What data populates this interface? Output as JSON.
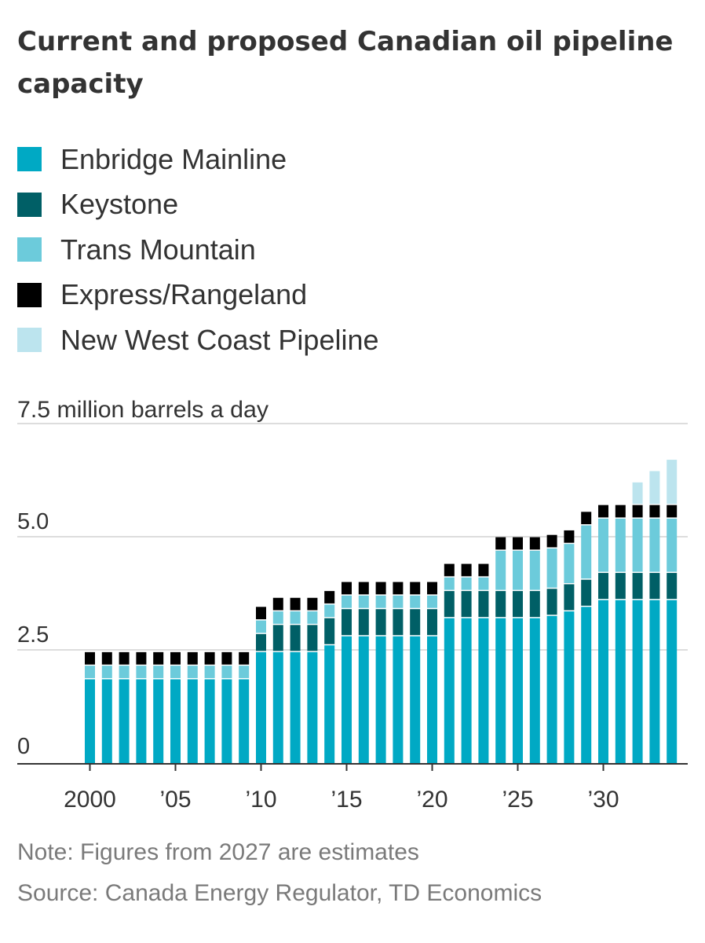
{
  "chart_data": {
    "type": "bar",
    "stacked": true,
    "title": "Current and proposed Canadian oil pipeline capacity",
    "unit_label": "7.5 million barrels a day",
    "ylim": [
      0,
      7.5
    ],
    "y_ticks": [
      {
        "value": 0,
        "label": "0"
      },
      {
        "value": 2.5,
        "label": "2.5"
      },
      {
        "value": 5.0,
        "label": "5.0"
      },
      {
        "value": 7.5,
        "label": "7.5"
      }
    ],
    "years": [
      2000,
      2001,
      2002,
      2003,
      2004,
      2005,
      2006,
      2007,
      2008,
      2009,
      2010,
      2011,
      2012,
      2013,
      2014,
      2015,
      2016,
      2017,
      2018,
      2019,
      2020,
      2021,
      2022,
      2023,
      2024,
      2025,
      2026,
      2027,
      2028,
      2029,
      2030,
      2031,
      2032,
      2033,
      2034
    ],
    "x_ticks": [
      {
        "value": 2000,
        "label": "2000"
      },
      {
        "value": 2005,
        "label": "’05"
      },
      {
        "value": 2010,
        "label": "’10"
      },
      {
        "value": 2015,
        "label": "’15"
      },
      {
        "value": 2020,
        "label": "’20"
      },
      {
        "value": 2025,
        "label": "’25"
      },
      {
        "value": 2030,
        "label": "’30"
      }
    ],
    "legend_placement": "top",
    "grid": true,
    "series": [
      {
        "name": "Enbridge Mainline",
        "color": "#00a9c4",
        "values": [
          1.85,
          1.85,
          1.85,
          1.85,
          1.85,
          1.85,
          1.85,
          1.85,
          1.85,
          1.85,
          2.45,
          2.45,
          2.45,
          2.45,
          2.6,
          2.8,
          2.8,
          2.8,
          2.8,
          2.8,
          2.8,
          3.2,
          3.2,
          3.2,
          3.2,
          3.2,
          3.2,
          3.25,
          3.35,
          3.45,
          3.6,
          3.6,
          3.6,
          3.6,
          3.6
        ]
      },
      {
        "name": "Keystone",
        "color": "#005f66",
        "values": [
          0,
          0,
          0,
          0,
          0,
          0,
          0,
          0,
          0,
          0,
          0.4,
          0.6,
          0.6,
          0.6,
          0.6,
          0.6,
          0.6,
          0.6,
          0.6,
          0.6,
          0.6,
          0.6,
          0.6,
          0.6,
          0.6,
          0.6,
          0.6,
          0.6,
          0.6,
          0.6,
          0.6,
          0.6,
          0.6,
          0.6,
          0.6
        ]
      },
      {
        "name": "Trans Mountain",
        "color": "#6ccbdb",
        "values": [
          0.3,
          0.3,
          0.3,
          0.3,
          0.3,
          0.3,
          0.3,
          0.3,
          0.3,
          0.3,
          0.3,
          0.3,
          0.3,
          0.3,
          0.3,
          0.3,
          0.3,
          0.3,
          0.3,
          0.3,
          0.3,
          0.3,
          0.3,
          0.3,
          0.89,
          0.89,
          0.89,
          0.89,
          0.89,
          1.2,
          1.2,
          1.2,
          1.2,
          1.2,
          1.2
        ]
      },
      {
        "name": "Express/Rangeland",
        "color": "#000000",
        "values": [
          0.3,
          0.3,
          0.3,
          0.3,
          0.3,
          0.3,
          0.3,
          0.3,
          0.3,
          0.3,
          0.3,
          0.3,
          0.3,
          0.3,
          0.3,
          0.3,
          0.3,
          0.3,
          0.3,
          0.3,
          0.3,
          0.3,
          0.3,
          0.3,
          0.3,
          0.3,
          0.3,
          0.3,
          0.3,
          0.3,
          0.3,
          0.3,
          0.3,
          0.3,
          0.3
        ]
      },
      {
        "name": "New West Coast Pipeline",
        "color": "#bce4ee",
        "values": [
          0,
          0,
          0,
          0,
          0,
          0,
          0,
          0,
          0,
          0,
          0,
          0,
          0,
          0,
          0,
          0,
          0,
          0,
          0,
          0,
          0,
          0,
          0,
          0,
          0,
          0,
          0,
          0,
          0,
          0,
          0,
          0,
          0.5,
          0.75,
          1.0
        ]
      }
    ]
  },
  "notes": {
    "note": "Note: Figures from 2027 are estimates",
    "source": "Source: Canada Energy Regulator, TD Economics"
  }
}
